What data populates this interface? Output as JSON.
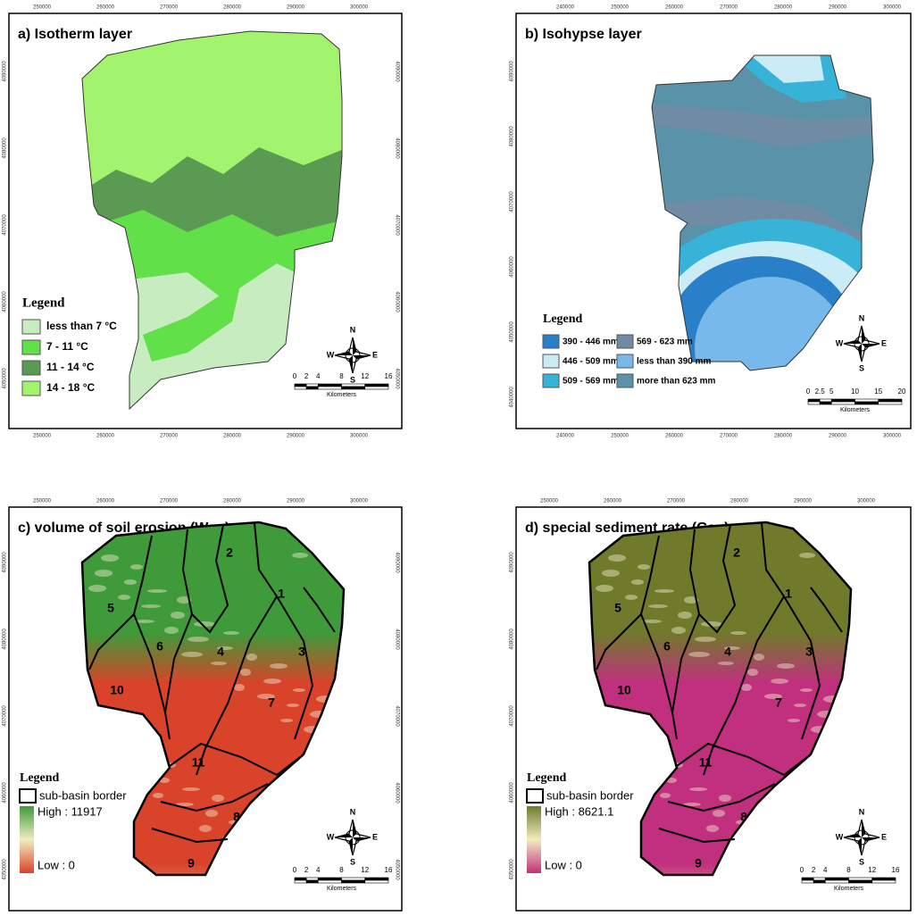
{
  "panels": [
    {
      "title": "a) Isotherm layer",
      "top_ticks": [
        "250000",
        "260000",
        "270000",
        "280000",
        "290000",
        "300000"
      ],
      "bottom_ticks": [
        "250000",
        "260000",
        "270000",
        "280000",
        "290000",
        "300000"
      ],
      "left_ticks": [
        "4090000",
        "4080000",
        "4070000",
        "4060000",
        "4050000"
      ],
      "right_ticks": [
        "4090000",
        "4080000",
        "4070000",
        "4060000",
        "4050000"
      ],
      "legend": {
        "title": "Legend",
        "items": [
          {
            "label": "less than 7 °C",
            "color": "#c6ecc0"
          },
          {
            "label": "7 - 11 °C",
            "color": "#62e04a"
          },
          {
            "label": "11 - 14 °C",
            "color": "#5b9a52"
          },
          {
            "label": "14 - 18 °C",
            "color": "#a2f46e"
          }
        ]
      },
      "scale": {
        "labels": [
          "0",
          "2",
          "4",
          "8",
          "12",
          "16"
        ],
        "unit": "Kilometers"
      },
      "compass": [
        "N",
        "S",
        "E",
        "W"
      ]
    },
    {
      "title": "b) Isohypse layer",
      "top_ticks": [
        "240000",
        "250000",
        "260000",
        "270000",
        "280000",
        "290000",
        "300000"
      ],
      "bottom_ticks": [
        "240000",
        "250000",
        "260000",
        "270000",
        "280000",
        "290000",
        "300000"
      ],
      "left_ticks": [
        "4090000",
        "4080000",
        "4070000",
        "4060000",
        "4050000",
        "4040000"
      ],
      "legend": {
        "title": "Legend",
        "items": [
          {
            "label": "390 - 446 mm",
            "color": "#2a80c8"
          },
          {
            "label": "446 - 509 mm",
            "color": "#c9ecf6"
          },
          {
            "label": "509 - 569 mm",
            "color": "#36b3d6"
          },
          {
            "label": "569 - 623 mm",
            "color": "#6f8ca4"
          },
          {
            "label": "less than 390 mm",
            "color": "#78b9ec"
          },
          {
            "label": "more than 623 mm",
            "color": "#5a92aa"
          }
        ]
      },
      "scale": {
        "labels": [
          "0",
          "2.5",
          "5",
          "10",
          "15",
          "20"
        ],
        "unit": "Kilometers"
      },
      "compass": [
        "N",
        "S",
        "E",
        "W"
      ]
    },
    {
      "title": "c) volume of soil erosion (Wsp)",
      "top_ticks": [
        "250000",
        "260000",
        "270000",
        "280000",
        "290000",
        "300000"
      ],
      "left_ticks": [
        "4090000",
        "4080000",
        "4070000",
        "4060000",
        "4050000"
      ],
      "right_ticks": [
        "4090000",
        "4080000",
        "4070000",
        "4060000",
        "4050000"
      ],
      "legend": {
        "title": "Legend",
        "border": "sub-basin border",
        "high": "High : 11917",
        "low": "Low : 0",
        "high_color": "#3f9a3a",
        "low_color": "#d8432a"
      },
      "basins": [
        "1",
        "2",
        "3",
        "4",
        "5",
        "6",
        "7",
        "8",
        "9",
        "10",
        "11"
      ],
      "scale": {
        "labels": [
          "0",
          "2",
          "4",
          "8",
          "12",
          "16"
        ],
        "unit": "Kilometers"
      },
      "compass": [
        "N",
        "S",
        "E",
        "W"
      ]
    },
    {
      "title": "d) special sediment rate (Gsp)",
      "top_ticks": [
        "250000",
        "260000",
        "270000",
        "280000",
        "290000",
        "300000"
      ],
      "left_ticks": [
        "4090000",
        "4080000",
        "4070000",
        "4060000",
        "4050000"
      ],
      "legend": {
        "title": "Legend",
        "border": "sub-basin border",
        "high": "High : 8621.1",
        "low": "Low : 0",
        "high_color": "#6f7a2a",
        "low_color": "#c1307e"
      },
      "basins": [
        "1",
        "2",
        "3",
        "4",
        "5",
        "6",
        "7",
        "8",
        "9",
        "10",
        "11"
      ],
      "scale": {
        "labels": [
          "0",
          "2",
          "4",
          "8",
          "12",
          "16"
        ],
        "unit": "Kilometers"
      },
      "compass": [
        "N",
        "S",
        "E",
        "W"
      ]
    }
  ]
}
